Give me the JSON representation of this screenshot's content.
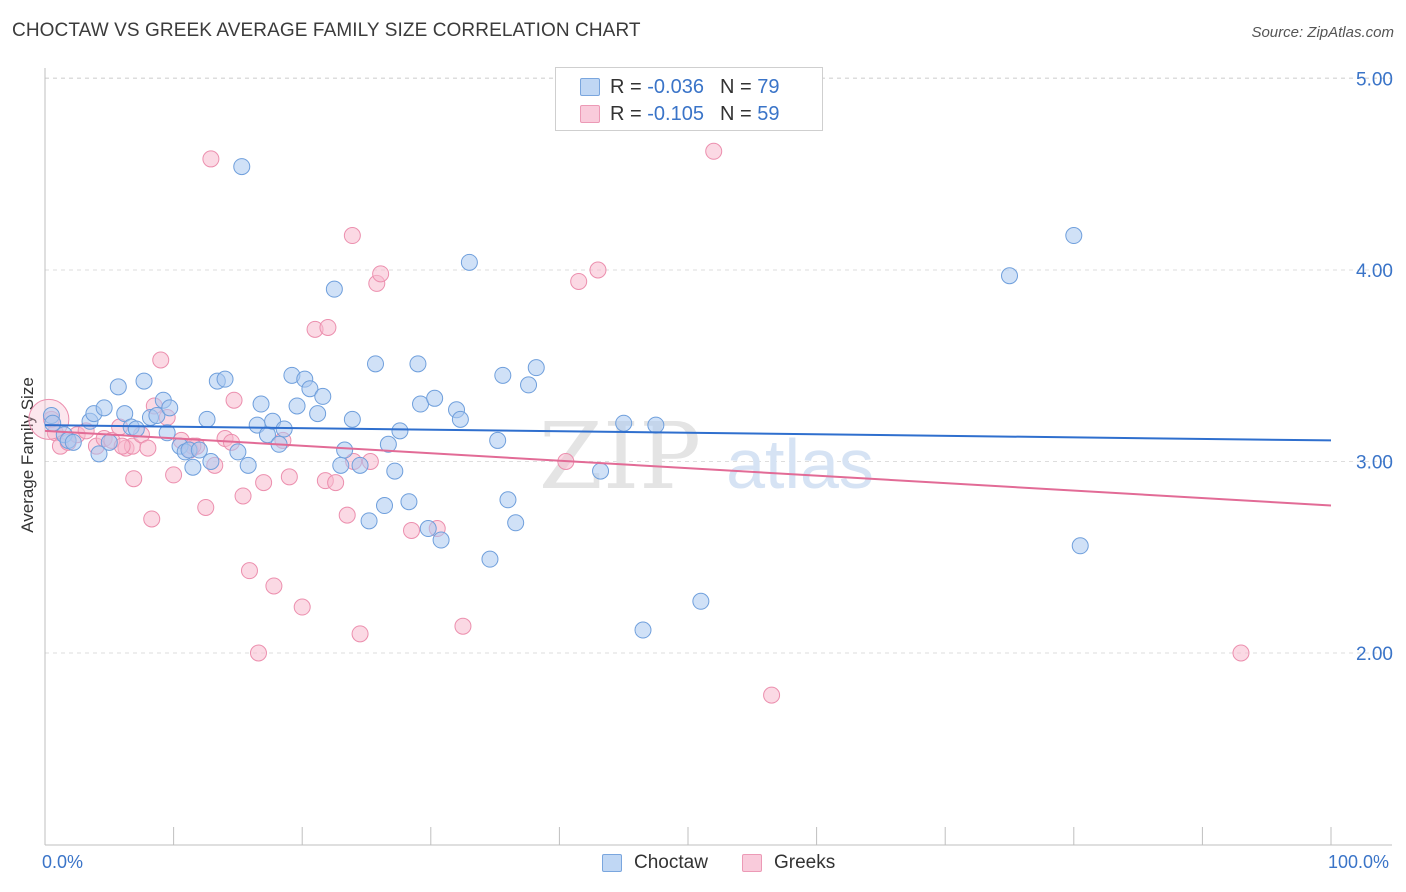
{
  "header": {
    "title": "CHOCTAW VS GREEK AVERAGE FAMILY SIZE CORRELATION CHART",
    "source": "Source: ZipAtlas.com"
  },
  "colors": {
    "choctaw_fill": "#a9c8f0",
    "choctaw_stroke": "#6f9fdc",
    "choctaw_line": "#2f6fce",
    "greeks_fill": "#f7b9cd",
    "greeks_stroke": "#ec8fae",
    "greeks_line": "#e26b96",
    "axis_text": "#3a74c8",
    "grid": "#dddddd"
  },
  "legend_top": {
    "choctaw": {
      "r_label": "R = ",
      "r_value": "-0.036",
      "n_label": "N = ",
      "n_value": "79"
    },
    "greeks": {
      "r_label": "R = ",
      "r_value": "-0.105",
      "n_label": "N = ",
      "n_value": "59"
    }
  },
  "legend_bottom": {
    "choctaw": "Choctaw",
    "greeks": "Greeks"
  },
  "x_axis": {
    "min_label": "0.0%",
    "max_label": "100.0%"
  },
  "watermark": {
    "zip": "ZIP",
    "atlas": "atlas"
  },
  "chart_data": {
    "type": "scatter",
    "title": "CHOCTAW VS GREEK AVERAGE FAMILY SIZE CORRELATION CHART",
    "xlabel": "",
    "ylabel": "Average Family Size",
    "xlim": [
      0,
      100
    ],
    "ylim": [
      1.25,
      5.1
    ],
    "yticks": [
      2.0,
      3.0,
      4.0,
      5.0
    ],
    "ytick_labels": [
      "2.00",
      "3.00",
      "4.00",
      "5.00"
    ],
    "grid": true,
    "legend_position": "top-center",
    "series": [
      {
        "name": "Choctaw",
        "trend": {
          "x": [
            0,
            100
          ],
          "y": [
            3.19,
            3.11
          ]
        },
        "points": [
          [
            0.5,
            3.24
          ],
          [
            0.6,
            3.2
          ],
          [
            1.5,
            3.14
          ],
          [
            1.8,
            3.11
          ],
          [
            2.2,
            3.1
          ],
          [
            3.5,
            3.21
          ],
          [
            3.8,
            3.25
          ],
          [
            4.2,
            3.04
          ],
          [
            4.6,
            3.28
          ],
          [
            5.0,
            3.1
          ],
          [
            5.7,
            3.39
          ],
          [
            6.2,
            3.25
          ],
          [
            6.7,
            3.18
          ],
          [
            7.1,
            3.17
          ],
          [
            7.7,
            3.42
          ],
          [
            8.2,
            3.23
          ],
          [
            8.7,
            3.24
          ],
          [
            9.2,
            3.32
          ],
          [
            9.7,
            3.28
          ],
          [
            9.5,
            3.15
          ],
          [
            10.5,
            3.08
          ],
          [
            10.9,
            3.05
          ],
          [
            11.2,
            3.06
          ],
          [
            11.5,
            2.97
          ],
          [
            12.0,
            3.06
          ],
          [
            12.6,
            3.22
          ],
          [
            12.9,
            3.0
          ],
          [
            13.4,
            3.42
          ],
          [
            14.0,
            3.43
          ],
          [
            15.0,
            3.05
          ],
          [
            15.3,
            4.54
          ],
          [
            15.8,
            2.98
          ],
          [
            16.5,
            3.19
          ],
          [
            16.8,
            3.3
          ],
          [
            17.3,
            3.14
          ],
          [
            17.7,
            3.21
          ],
          [
            18.2,
            3.09
          ],
          [
            18.6,
            3.17
          ],
          [
            19.2,
            3.45
          ],
          [
            19.6,
            3.29
          ],
          [
            20.2,
            3.43
          ],
          [
            20.6,
            3.38
          ],
          [
            21.2,
            3.25
          ],
          [
            21.6,
            3.34
          ],
          [
            22.5,
            3.9
          ],
          [
            23.0,
            2.98
          ],
          [
            23.3,
            3.06
          ],
          [
            23.9,
            3.22
          ],
          [
            24.5,
            2.98
          ],
          [
            25.2,
            2.69
          ],
          [
            25.7,
            3.51
          ],
          [
            26.4,
            2.77
          ],
          [
            26.7,
            3.09
          ],
          [
            27.2,
            2.95
          ],
          [
            27.6,
            3.16
          ],
          [
            28.3,
            2.79
          ],
          [
            29.0,
            3.51
          ],
          [
            29.2,
            3.3
          ],
          [
            29.8,
            2.65
          ],
          [
            30.3,
            3.33
          ],
          [
            30.8,
            2.59
          ],
          [
            32.0,
            3.27
          ],
          [
            32.3,
            3.22
          ],
          [
            33.0,
            4.04
          ],
          [
            34.6,
            2.49
          ],
          [
            35.2,
            3.11
          ],
          [
            35.6,
            3.45
          ],
          [
            36.0,
            2.8
          ],
          [
            36.6,
            2.68
          ],
          [
            37.6,
            3.4
          ],
          [
            38.2,
            3.49
          ],
          [
            43.2,
            2.95
          ],
          [
            45.0,
            3.2
          ],
          [
            46.5,
            2.12
          ],
          [
            51.0,
            2.27
          ],
          [
            75.0,
            3.97
          ],
          [
            80.0,
            4.18
          ],
          [
            80.5,
            2.56
          ],
          [
            47.5,
            3.19
          ]
        ]
      },
      {
        "name": "Greeks",
        "trend": {
          "x": [
            0,
            100
          ],
          "y": [
            3.16,
            2.77
          ]
        },
        "points": [
          [
            0.5,
            3.22
          ],
          [
            0.8,
            3.15
          ],
          [
            1.2,
            3.08
          ],
          [
            1.8,
            3.1
          ],
          [
            2.5,
            3.14
          ],
          [
            3.2,
            3.16
          ],
          [
            4.0,
            3.08
          ],
          [
            4.6,
            3.12
          ],
          [
            5.2,
            3.11
          ],
          [
            5.8,
            3.18
          ],
          [
            6.3,
            3.07
          ],
          [
            6.8,
            3.08
          ],
          [
            6.9,
            2.91
          ],
          [
            7.5,
            3.14
          ],
          [
            8.0,
            3.07
          ],
          [
            8.5,
            3.29
          ],
          [
            8.3,
            2.7
          ],
          [
            9.0,
            3.53
          ],
          [
            9.5,
            3.23
          ],
          [
            10.0,
            2.93
          ],
          [
            10.6,
            3.11
          ],
          [
            11.3,
            3.06
          ],
          [
            11.8,
            3.08
          ],
          [
            12.5,
            2.76
          ],
          [
            12.9,
            4.58
          ],
          [
            13.2,
            2.98
          ],
          [
            14.0,
            3.12
          ],
          [
            14.7,
            3.32
          ],
          [
            15.4,
            2.82
          ],
          [
            15.9,
            2.43
          ],
          [
            16.6,
            2.0
          ],
          [
            17.0,
            2.89
          ],
          [
            17.8,
            2.35
          ],
          [
            18.5,
            3.11
          ],
          [
            19.0,
            2.92
          ],
          [
            20.0,
            2.24
          ],
          [
            21.0,
            3.69
          ],
          [
            22.0,
            3.7
          ],
          [
            21.8,
            2.9
          ],
          [
            22.6,
            2.89
          ],
          [
            23.5,
            2.72
          ],
          [
            23.9,
            4.18
          ],
          [
            24.5,
            2.1
          ],
          [
            25.3,
            3.0
          ],
          [
            25.8,
            3.93
          ],
          [
            26.1,
            3.98
          ],
          [
            28.5,
            2.64
          ],
          [
            30.5,
            2.65
          ],
          [
            32.5,
            2.14
          ],
          [
            40.5,
            3.0
          ],
          [
            41.5,
            3.94
          ],
          [
            43.0,
            4.0
          ],
          [
            52.0,
            4.62
          ],
          [
            56.5,
            1.78
          ],
          [
            93.0,
            2.0
          ],
          [
            14.5,
            3.1
          ],
          [
            6.0,
            3.08
          ],
          [
            11.5,
            3.08
          ],
          [
            24.0,
            3.0
          ]
        ]
      }
    ]
  }
}
